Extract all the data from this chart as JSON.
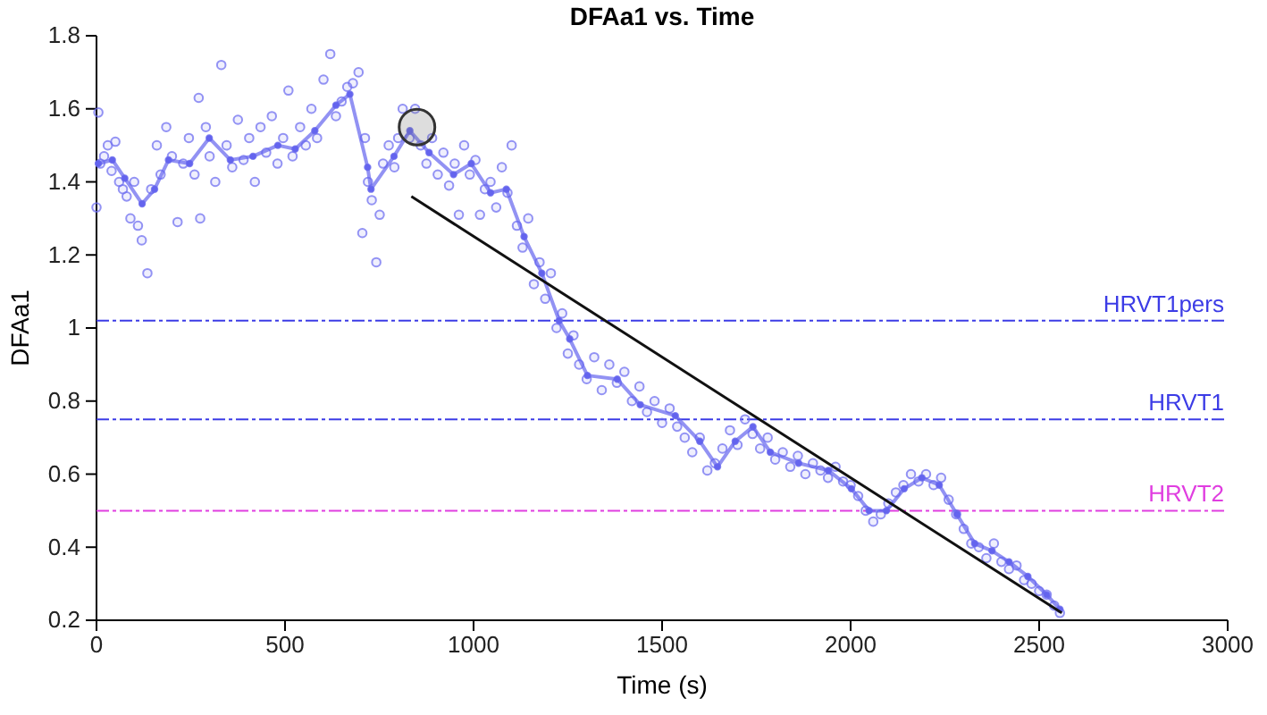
{
  "chart_data": {
    "type": "scatter",
    "title": "DFAa1 vs. Time",
    "xlabel": "Time (s)",
    "ylabel": "DFAa1",
    "xlim": [
      0,
      3000
    ],
    "xticks": [
      0,
      500,
      1000,
      1500,
      2000,
      2500,
      3000
    ],
    "ylim": [
      0.2,
      1.8
    ],
    "yticks": [
      0.2,
      0.4,
      0.6,
      0.8,
      1,
      1.2,
      1.4,
      1.6,
      1.8
    ],
    "grid": false,
    "marker": "circle",
    "ref_lines": [
      {
        "axis": "y",
        "value": 1.02,
        "label": "HRVT1pers",
        "color": "#3c3ce6",
        "line_style": "dashed"
      },
      {
        "axis": "y",
        "value": 0.75,
        "label": "HRVT1",
        "color": "#3c3ce6",
        "line_style": "dashed"
      },
      {
        "axis": "y",
        "value": 0.5,
        "label": "HRVT2",
        "color": "#e03ee0",
        "line_style": "dashed"
      }
    ],
    "series": [
      {
        "color": "#7070f0",
        "x": [
          0,
          5,
          10,
          20,
          30,
          40,
          50,
          60,
          70,
          80,
          90,
          100,
          110,
          120,
          135,
          145,
          160,
          170,
          185,
          200,
          215,
          230,
          245,
          260,
          271,
          275,
          290,
          300,
          315,
          331,
          345,
          360,
          375,
          390,
          405,
          420,
          435,
          450,
          465,
          480,
          495,
          509,
          520,
          540,
          555,
          570,
          585,
          602,
          620,
          635,
          650,
          665,
          680,
          695,
          705,
          712,
          720,
          730,
          742,
          751,
          760,
          775,
          790,
          800,
          812,
          830,
          845,
          860,
          875,
          890,
          905,
          920,
          935,
          950,
          961,
          975,
          990,
          1005,
          1017,
          1030,
          1045,
          1060,
          1075,
          1090,
          1101,
          1115,
          1130,
          1145,
          1160,
          1175,
          1190,
          1205,
          1220,
          1235,
          1250,
          1265,
          1280,
          1300,
          1320,
          1340,
          1360,
          1380,
          1400,
          1420,
          1440,
          1460,
          1480,
          1500,
          1520,
          1540,
          1560,
          1580,
          1600,
          1620,
          1640,
          1660,
          1680,
          1700,
          1720,
          1740,
          1760,
          1780,
          1800,
          1820,
          1840,
          1860,
          1880,
          1900,
          1920,
          1940,
          1960,
          1980,
          2000,
          2020,
          2040,
          2060,
          2080,
          2100,
          2120,
          2140,
          2160,
          2180,
          2200,
          2220,
          2240,
          2260,
          2280,
          2300,
          2320,
          2340,
          2360,
          2380,
          2400,
          2420,
          2440,
          2460,
          2480,
          2500,
          2520,
          2540,
          2555
        ],
        "values": [
          1.33,
          1.59,
          1.45,
          1.47,
          1.5,
          1.43,
          1.51,
          1.4,
          1.38,
          1.36,
          1.3,
          1.4,
          1.28,
          1.24,
          1.15,
          1.38,
          1.5,
          1.42,
          1.55,
          1.47,
          1.29,
          1.45,
          1.52,
          1.42,
          1.63,
          1.3,
          1.55,
          1.47,
          1.4,
          1.72,
          1.5,
          1.44,
          1.57,
          1.46,
          1.52,
          1.4,
          1.55,
          1.48,
          1.58,
          1.45,
          1.52,
          1.65,
          1.47,
          1.55,
          1.5,
          1.6,
          1.52,
          1.68,
          1.75,
          1.58,
          1.62,
          1.66,
          1.67,
          1.7,
          1.26,
          1.52,
          1.4,
          1.35,
          1.18,
          1.31,
          1.45,
          1.5,
          1.44,
          1.52,
          1.6,
          1.52,
          1.6,
          1.5,
          1.45,
          1.52,
          1.42,
          1.48,
          1.39,
          1.45,
          1.31,
          1.5,
          1.42,
          1.46,
          1.31,
          1.38,
          1.4,
          1.33,
          1.44,
          1.37,
          1.5,
          1.28,
          1.22,
          1.3,
          1.12,
          1.18,
          1.08,
          1.15,
          1.0,
          1.04,
          0.93,
          0.98,
          0.9,
          0.86,
          0.92,
          0.83,
          0.9,
          0.85,
          0.88,
          0.8,
          0.84,
          0.77,
          0.8,
          0.74,
          0.78,
          0.73,
          0.7,
          0.66,
          0.7,
          0.61,
          0.63,
          0.67,
          0.72,
          0.68,
          0.75,
          0.71,
          0.67,
          0.7,
          0.64,
          0.66,
          0.62,
          0.65,
          0.6,
          0.63,
          0.61,
          0.59,
          0.62,
          0.58,
          0.57,
          0.54,
          0.5,
          0.47,
          0.49,
          0.52,
          0.55,
          0.57,
          0.6,
          0.58,
          0.6,
          0.57,
          0.59,
          0.53,
          0.49,
          0.45,
          0.41,
          0.4,
          0.37,
          0.41,
          0.36,
          0.34,
          0.35,
          0.31,
          0.3,
          0.28,
          0.27,
          0.24,
          0.22
        ]
      },
      {
        "type": "line",
        "color": "#6464ee",
        "marker": "circle",
        "x": [
          5,
          42,
          75,
          121,
          154,
          191,
          247,
          299,
          355,
          415,
          481,
          527,
          579,
          635,
          672,
          719,
          728,
          789,
          831,
          882,
          947,
          994,
          1045,
          1087,
          1134,
          1181,
          1227,
          1255,
          1302,
          1381,
          1442,
          1535,
          1600,
          1647,
          1694,
          1741,
          1787,
          1862,
          1941,
          2002,
          2049,
          2095,
          2142,
          2189,
          2235,
          2282,
          2329,
          2375,
          2420,
          2470,
          2520,
          2555
        ],
        "values": [
          1.45,
          1.46,
          1.41,
          1.34,
          1.38,
          1.46,
          1.45,
          1.52,
          1.46,
          1.47,
          1.5,
          1.49,
          1.54,
          1.61,
          1.64,
          1.44,
          1.38,
          1.47,
          1.54,
          1.48,
          1.42,
          1.45,
          1.37,
          1.38,
          1.25,
          1.15,
          1.02,
          0.97,
          0.87,
          0.86,
          0.79,
          0.76,
          0.69,
          0.62,
          0.69,
          0.73,
          0.66,
          0.63,
          0.61,
          0.56,
          0.5,
          0.5,
          0.56,
          0.59,
          0.57,
          0.49,
          0.41,
          0.39,
          0.36,
          0.32,
          0.27,
          0.23
        ]
      },
      {
        "type": "line",
        "color": "#111111",
        "marker": "none",
        "x": [
          835,
          2560
        ],
        "values": [
          1.36,
          0.22
        ]
      },
      {
        "type": "bubble",
        "color": "#333333",
        "x": [
          850
        ],
        "values": [
          1.55
        ],
        "sizes": [
          1
        ]
      }
    ]
  }
}
